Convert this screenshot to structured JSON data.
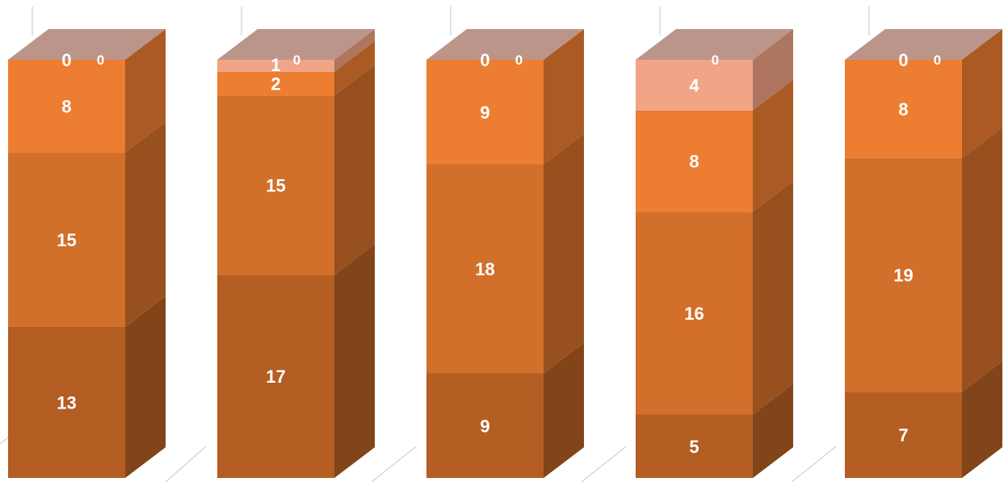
{
  "chart_data": {
    "type": "bar",
    "stacked": true,
    "three_d": true,
    "categories": [
      "",
      "",
      "",
      "",
      ""
    ],
    "series": [
      {
        "values": [
          13,
          17,
          9,
          5,
          7
        ],
        "color": "#B45E23"
      },
      {
        "values": [
          15,
          15,
          18,
          16,
          19
        ],
        "color": "#D26F2A"
      },
      {
        "values": [
          8,
          2,
          9,
          8,
          8
        ],
        "color": "#ED7D31"
      },
      {
        "values": [
          0,
          1,
          0,
          4,
          0
        ],
        "color": "#F1A486"
      },
      {
        "values": [
          0,
          0,
          0,
          0,
          0
        ],
        "color": "#BB958A"
      }
    ],
    "top_face_color": "#BB958A",
    "gridlines": true,
    "legend": "none",
    "title": "",
    "xlabel": "",
    "ylabel": ""
  }
}
